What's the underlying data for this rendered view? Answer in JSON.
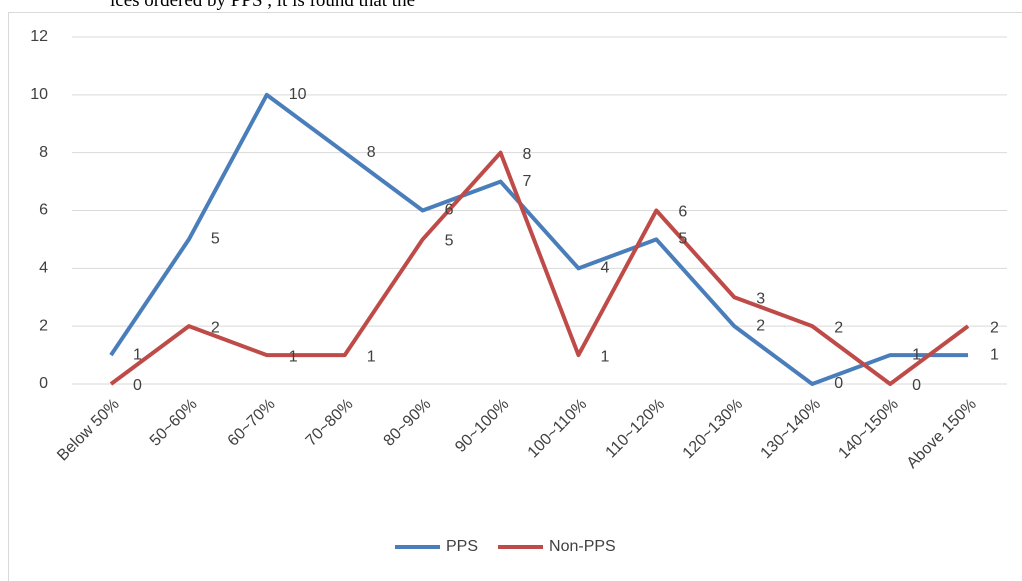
{
  "text_above": "ices ordered by PPS , it is found that the",
  "chart_data": {
    "type": "line",
    "categories": [
      "Below 50%",
      "50~60%",
      "60~70%",
      "70~80%",
      "80~90%",
      "90~100%",
      "100~110%",
      "110~120%",
      "120~130%",
      "130~140%",
      "140~150%",
      "Above 150%"
    ],
    "series": [
      {
        "name": "PPS",
        "color": "#4a7ebb",
        "values": [
          1,
          5,
          10,
          8,
          6,
          7,
          4,
          5,
          2,
          0,
          1,
          1
        ]
      },
      {
        "name": "Non-PPS",
        "color": "#be4b48",
        "values": [
          0,
          2,
          1,
          1,
          5,
          8,
          1,
          6,
          3,
          2,
          0,
          2
        ]
      }
    ],
    "ylim": [
      0,
      12
    ],
    "yticks": [
      0,
      2,
      4,
      6,
      8,
      10,
      12
    ],
    "grid": true,
    "legend": "bottom"
  }
}
